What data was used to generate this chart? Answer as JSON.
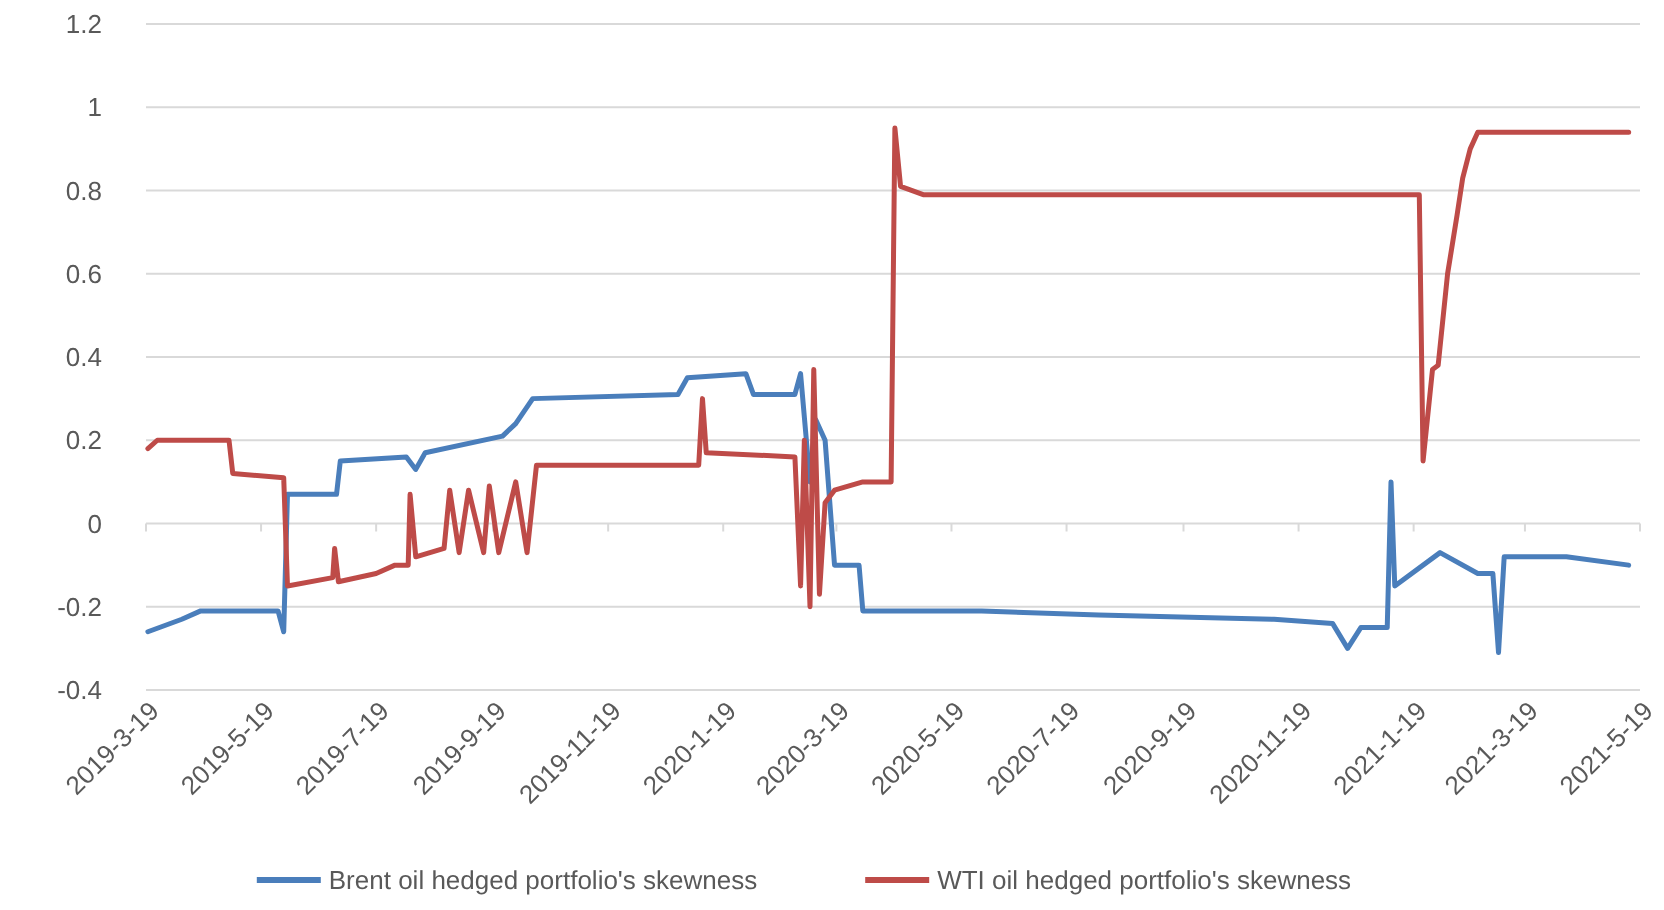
{
  "chart_data": {
    "type": "line",
    "xlim": [
      "2019-03-19",
      "2021-05-19"
    ],
    "xticks": [
      {
        "value": "2019-03-19",
        "label": "2019-3-19"
      },
      {
        "value": "2019-05-19",
        "label": "2019-5-19"
      },
      {
        "value": "2019-07-19",
        "label": "2019-7-19"
      },
      {
        "value": "2019-09-19",
        "label": "2019-9-19"
      },
      {
        "value": "2019-11-19",
        "label": "2019-11-19"
      },
      {
        "value": "2020-01-19",
        "label": "2020-1-19"
      },
      {
        "value": "2020-03-19",
        "label": "2020-3-19"
      },
      {
        "value": "2020-05-19",
        "label": "2020-5-19"
      },
      {
        "value": "2020-07-19",
        "label": "2020-7-19"
      },
      {
        "value": "2020-09-19",
        "label": "2020-9-19"
      },
      {
        "value": "2020-11-19",
        "label": "2020-11-19"
      },
      {
        "value": "2021-01-19",
        "label": "2021-1-19"
      },
      {
        "value": "2021-03-19",
        "label": "2021-3-19"
      },
      {
        "value": "2021-05-19",
        "label": "2021-5-19"
      }
    ],
    "ylim": [
      -0.4,
      1.2
    ],
    "yticks": [
      -0.4,
      -0.2,
      0,
      0.2,
      0.4,
      0.6,
      0.8,
      1,
      1.2
    ],
    "grid": "y",
    "legend": "bottom",
    "marker": "none",
    "line_style": "solid",
    "series": [
      {
        "name": "Brent oil hedged portfolio's skewness",
        "color": "#4a7ebb",
        "x": [
          "2019-03-20",
          "2019-04-07",
          "2019-04-17",
          "2019-05-28",
          "2019-05-31",
          "2019-06-02",
          "2019-06-28",
          "2019-06-30",
          "2019-08-04",
          "2019-08-09",
          "2019-08-14",
          "2019-09-24",
          "2019-10-01",
          "2019-10-10",
          "2019-12-26",
          "2019-12-31",
          "2020-01-31",
          "2020-02-04",
          "2020-02-26",
          "2020-02-29",
          "2020-03-05",
          "2020-03-08",
          "2020-03-13",
          "2020-03-18",
          "2020-03-31",
          "2020-04-02",
          "2020-06-04",
          "2020-08-05",
          "2020-11-06",
          "2020-12-07",
          "2020-12-15",
          "2020-12-22",
          "2021-01-05",
          "2021-01-07",
          "2021-01-09",
          "2021-02-02",
          "2021-02-22",
          "2021-03-02",
          "2021-03-05",
          "2021-03-08",
          "2021-04-10",
          "2021-05-13"
        ],
        "values": [
          -0.26,
          -0.23,
          -0.21,
          -0.21,
          -0.26,
          0.07,
          0.07,
          0.15,
          0.16,
          0.13,
          0.17,
          0.21,
          0.24,
          0.3,
          0.31,
          0.35,
          0.36,
          0.31,
          0.31,
          0.36,
          0.1,
          0.25,
          0.2,
          -0.1,
          -0.1,
          -0.21,
          -0.21,
          -0.22,
          -0.23,
          -0.24,
          -0.3,
          -0.25,
          -0.25,
          0.1,
          -0.15,
          -0.07,
          -0.12,
          -0.12,
          -0.31,
          -0.08,
          -0.08,
          -0.1
        ]
      },
      {
        "name": "WTI oil hedged portfolio's skewness",
        "color": "#be4b48",
        "x": [
          "2019-03-20",
          "2019-03-25",
          "2019-05-02",
          "2019-05-04",
          "2019-05-31",
          "2019-06-02",
          "2019-06-26",
          "2019-06-27",
          "2019-06-29",
          "2019-07-19",
          "2019-07-29",
          "2019-08-05",
          "2019-08-06",
          "2019-08-09",
          "2019-08-24",
          "2019-08-27",
          "2019-09-01",
          "2019-09-06",
          "2019-09-14",
          "2019-09-17",
          "2019-09-22",
          "2019-10-01",
          "2019-10-07",
          "2019-10-12",
          "2020-01-06",
          "2020-01-08",
          "2020-01-10",
          "2020-02-26",
          "2020-02-29",
          "2020-03-02",
          "2020-03-05",
          "2020-03-07",
          "2020-03-10",
          "2020-03-13",
          "2020-03-18",
          "2020-04-02",
          "2020-04-17",
          "2020-04-19",
          "2020-04-22",
          "2020-05-04",
          "2021-01-22",
          "2021-01-24",
          "2021-01-29",
          "2021-02-01",
          "2021-02-06",
          "2021-02-11",
          "2021-02-14",
          "2021-02-18",
          "2021-02-22",
          "2021-05-13"
        ],
        "values": [
          0.18,
          0.2,
          0.2,
          0.12,
          0.11,
          -0.15,
          -0.13,
          -0.06,
          -0.14,
          -0.12,
          -0.1,
          -0.1,
          0.07,
          -0.08,
          -0.06,
          0.08,
          -0.07,
          0.08,
          -0.07,
          0.09,
          -0.07,
          0.1,
          -0.07,
          0.14,
          0.14,
          0.3,
          0.17,
          0.16,
          -0.15,
          0.2,
          -0.2,
          0.37,
          -0.17,
          0.05,
          0.08,
          0.1,
          0.1,
          0.95,
          0.81,
          0.79,
          0.79,
          0.15,
          0.37,
          0.38,
          0.6,
          0.74,
          0.83,
          0.9,
          0.94,
          0.94
        ]
      }
    ]
  }
}
